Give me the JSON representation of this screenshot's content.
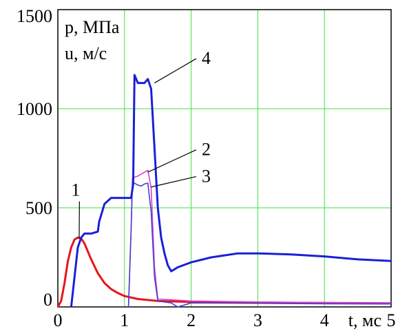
{
  "chart_data": {
    "type": "line",
    "xlabel": "t, мс",
    "ylabel_lines": [
      "p, МПа",
      "u, м/с"
    ],
    "xlim": [
      0,
      5
    ],
    "ylim": [
      0,
      1500
    ],
    "x_ticks": [
      "0",
      "1",
      "2",
      "3",
      "4",
      "5"
    ],
    "y_ticks": [
      "0",
      "500",
      "1000",
      "1500"
    ],
    "grid": true,
    "series": [
      {
        "name": "1",
        "color": "#e8141b",
        "x": [
          0.0,
          0.05,
          0.1,
          0.15,
          0.2,
          0.25,
          0.3,
          0.35,
          0.4,
          0.45,
          0.5,
          0.6,
          0.7,
          0.8,
          0.9,
          1.0,
          1.2,
          1.5,
          2.0,
          3.0,
          4.0,
          5.0
        ],
        "y": [
          0,
          30,
          120,
          230,
          300,
          340,
          350,
          345,
          320,
          280,
          240,
          170,
          120,
          90,
          70,
          55,
          40,
          30,
          25,
          22,
          20,
          18
        ]
      },
      {
        "name": "2",
        "color": "#d43fd4",
        "x": [
          1.06,
          1.1,
          1.12,
          1.2,
          1.3,
          1.35,
          1.4,
          1.45,
          1.5,
          2.0,
          3.0,
          4.0,
          5.0
        ],
        "y": [
          0,
          400,
          650,
          660,
          680,
          690,
          600,
          200,
          40,
          30,
          25,
          22,
          20
        ]
      },
      {
        "name": "3",
        "color": "#4a3fc8",
        "x": [
          1.06,
          1.1,
          1.12,
          1.2,
          1.25,
          1.3,
          1.35,
          1.4,
          1.45,
          1.5,
          1.7,
          1.8,
          2.0,
          3.0,
          4.0,
          5.0
        ],
        "y": [
          0,
          400,
          630,
          615,
          610,
          620,
          625,
          480,
          150,
          30,
          20,
          0,
          20,
          18,
          16,
          15
        ]
      },
      {
        "name": "4",
        "color": "#1a1fd8",
        "x": [
          0.2,
          0.25,
          0.3,
          0.35,
          0.4,
          0.5,
          0.6,
          0.62,
          0.7,
          0.8,
          0.85,
          0.9,
          1.0,
          1.1,
          1.13,
          1.15,
          1.2,
          1.3,
          1.35,
          1.4,
          1.45,
          1.5,
          1.55,
          1.6,
          1.65,
          1.7,
          1.8,
          2.0,
          2.3,
          2.5,
          2.7,
          3.0,
          3.5,
          4.0,
          4.5,
          5.0
        ],
        "y": [
          0,
          150,
          300,
          350,
          370,
          370,
          380,
          430,
          520,
          550,
          550,
          550,
          550,
          550,
          620,
          1170,
          1130,
          1130,
          1150,
          1100,
          800,
          500,
          350,
          270,
          210,
          180,
          200,
          225,
          250,
          260,
          270,
          270,
          265,
          255,
          240,
          232
        ]
      }
    ],
    "annotations": [
      {
        "text": "1",
        "x": 0.2,
        "y": 560,
        "target_x": 0.32,
        "target_y": 345
      },
      {
        "text": "2",
        "x": 2.2,
        "y": 765,
        "target_x": 1.35,
        "target_y": 680
      },
      {
        "text": "3",
        "x": 2.2,
        "y": 630,
        "target_x": 1.4,
        "target_y": 605
      },
      {
        "text": "4",
        "x": 2.2,
        "y": 1225,
        "target_x": 1.45,
        "target_y": 1130
      }
    ]
  }
}
